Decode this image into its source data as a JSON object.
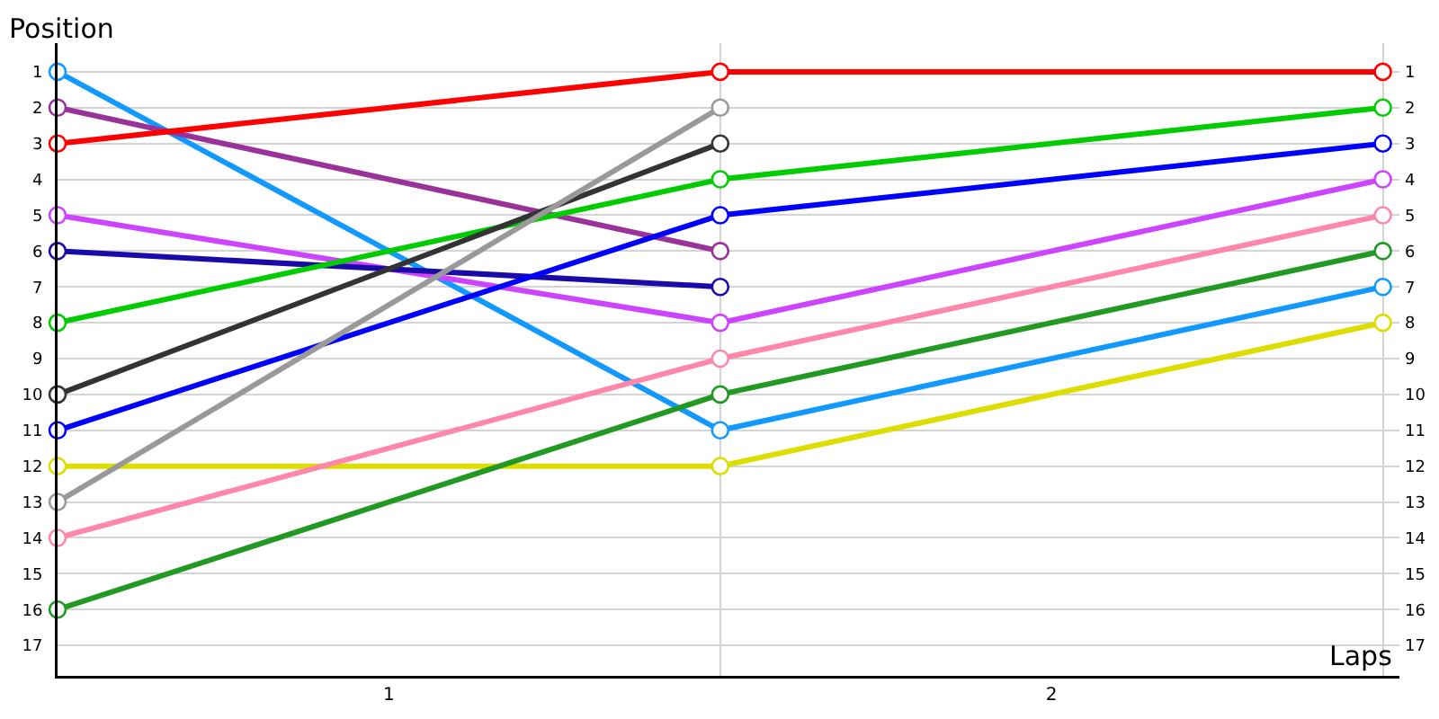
{
  "chart_data": {
    "type": "line",
    "xlabel": "Laps",
    "ylabel": "Position",
    "x": [
      0,
      1,
      2
    ],
    "xlim": [
      0,
      2.025
    ],
    "xticks": [
      {
        "value": 0,
        "label": null
      },
      {
        "value": 0.5,
        "label": "1"
      },
      {
        "value": 1,
        "label": null
      },
      {
        "value": 1.5,
        "label": "2"
      },
      {
        "value": 2,
        "label": null
      }
    ],
    "ylim": [
      17.85,
      0.2
    ],
    "yticks": [
      1,
      2,
      3,
      4,
      5,
      6,
      7,
      8,
      9,
      10,
      11,
      12,
      13,
      14,
      15,
      16,
      17
    ],
    "y2lim": [
      17.85,
      0.2
    ],
    "y2ticks": [
      1,
      2,
      3,
      4,
      5,
      6,
      7,
      8,
      9,
      10,
      11,
      12,
      13,
      14,
      15,
      16,
      17
    ],
    "grid": true,
    "marker": "circle",
    "line_style": "solid",
    "series": [
      {
        "color": "#1199ff",
        "values": [
          1,
          11,
          7
        ]
      },
      {
        "color": "#993399",
        "values": [
          2,
          6,
          null
        ]
      },
      {
        "color": "#ff0000",
        "values": [
          3,
          1,
          1
        ]
      },
      {
        "color": "#cc44ff",
        "values": [
          5,
          8,
          4
        ]
      },
      {
        "color": "#1a0aa8",
        "values": [
          6,
          7,
          null
        ]
      },
      {
        "color": "#00cc00",
        "values": [
          8,
          4,
          2
        ]
      },
      {
        "color": "#333333",
        "values": [
          10,
          3,
          null
        ]
      },
      {
        "color": "#0000ff",
        "values": [
          11,
          5,
          3
        ]
      },
      {
        "color": "#dddd00",
        "values": [
          12,
          12,
          8
        ]
      },
      {
        "color": "#999999",
        "values": [
          13,
          2,
          null
        ]
      },
      {
        "color": "#ff88aa",
        "values": [
          14,
          9,
          5
        ]
      },
      {
        "color": "#229922",
        "values": [
          16,
          10,
          6
        ]
      }
    ]
  }
}
